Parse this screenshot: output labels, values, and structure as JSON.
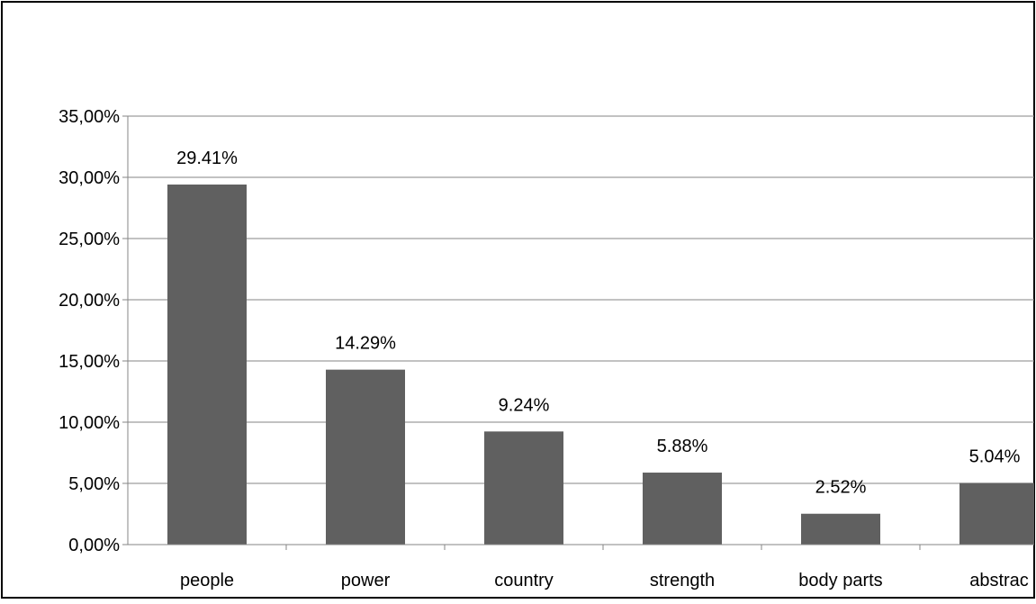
{
  "chart_data": {
    "type": "bar",
    "categories": [
      "people",
      "power",
      "country",
      "strength",
      "body parts",
      "abstrac"
    ],
    "values": [
      29.41,
      14.29,
      9.24,
      5.88,
      2.52,
      5.04
    ],
    "data_labels": [
      "29.41%",
      "14.29%",
      "9.24%",
      "5.88%",
      "2.52%",
      "5.04%"
    ],
    "y_ticks": [
      {
        "value": 0,
        "label": "0,00%"
      },
      {
        "value": 5,
        "label": "5,00%"
      },
      {
        "value": 10,
        "label": "10,00%"
      },
      {
        "value": 15,
        "label": "15,00%"
      },
      {
        "value": 20,
        "label": "20,00%"
      },
      {
        "value": 25,
        "label": "25,00%"
      },
      {
        "value": 30,
        "label": "30,00%"
      },
      {
        "value": 35,
        "label": "35,00%"
      }
    ],
    "ylim": [
      0,
      35
    ],
    "title": "",
    "xlabel": "",
    "ylabel": "",
    "grid": true,
    "legend": "none",
    "bar_color": "#606060",
    "grid_color": "#868686",
    "border_color": "#000000"
  }
}
